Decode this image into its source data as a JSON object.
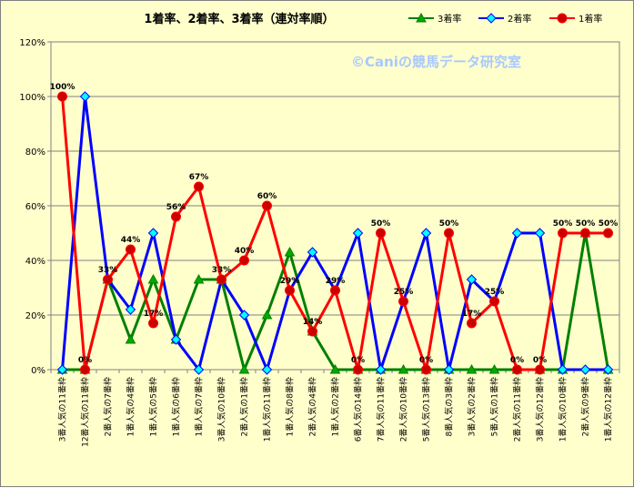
{
  "chart_data": {
    "type": "line",
    "title": "1着率、2着率、3着率（連対率順）",
    "watermark": "©Caniの競馬データ研究室",
    "ylim": [
      0,
      120
    ],
    "yticks": [
      0,
      20,
      40,
      60,
      80,
      100,
      120
    ],
    "ytick_labels": [
      "0%",
      "20%",
      "40%",
      "60%",
      "80%",
      "100%",
      "120%"
    ],
    "grid": true,
    "legend_position": "top-right",
    "categories": [
      "3番人気の11番枠",
      "12番人気の11番枠",
      "2番人気の7番枠",
      "1番人気の4番枠",
      "1番人気の5番枠",
      "1番人気の6番枠",
      "1番人気の7番枠",
      "3番人気の10番枠",
      "2番人気の1番枠",
      "1番人気の11番枠",
      "1番人気の8番枠",
      "2番人気の4番枠",
      "1番人気の2番枠",
      "6番人気の14番枠",
      "7番人気の11番枠",
      "2番人気の10番枠",
      "5番人気の13番枠",
      "8番人気の3番枠",
      "3番人気の2番枠",
      "5番人気の1番枠",
      "2番人気の11番枠",
      "3番人気の12番枠",
      "1番人気の10番枠",
      "2番人気の9番枠",
      "1番人気の12番枠"
    ],
    "series": [
      {
        "name": "3着率",
        "color": "#008000",
        "marker": "triangle",
        "marker_color": "#00aa00",
        "values": [
          0,
          0,
          33,
          11,
          33,
          11,
          33,
          33,
          0,
          20,
          43,
          14,
          0,
          0,
          0,
          0,
          0,
          0,
          0,
          0,
          0,
          0,
          0,
          50,
          0
        ]
      },
      {
        "name": "2着率",
        "color": "#0000ff",
        "marker": "diamond",
        "marker_color": "#00ffff",
        "values": [
          0,
          100,
          33,
          22,
          50,
          11,
          0,
          33,
          20,
          0,
          29,
          43,
          29,
          50,
          0,
          25,
          50,
          0,
          33,
          25,
          50,
          50,
          0,
          0,
          0
        ]
      },
      {
        "name": "1着率",
        "color": "#ff0000",
        "marker": "circle",
        "marker_color": "#cc0000",
        "values": [
          100,
          0,
          33,
          44,
          17,
          56,
          67,
          33,
          40,
          60,
          29,
          14,
          29,
          0,
          50,
          25,
          0,
          50,
          17,
          25,
          0,
          0,
          50,
          50,
          50
        ],
        "data_labels": [
          "100%",
          "0%",
          "33%",
          "44%",
          "17%",
          "56%",
          "67%",
          "33%",
          "40%",
          "60%",
          "29%",
          "14%",
          "29%",
          "0%",
          "50%",
          "25%",
          "0%",
          "50%",
          "17%",
          "25%",
          "0%",
          "0%",
          "50%",
          "50%",
          "50%"
        ]
      }
    ]
  }
}
